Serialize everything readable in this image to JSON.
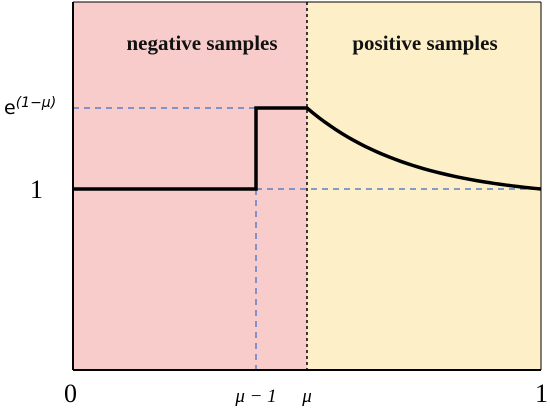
{
  "chart_data": {
    "type": "line",
    "title": "",
    "xlabel": "",
    "ylabel": "",
    "regions": [
      {
        "name": "negative-region",
        "label": "negative samples",
        "x_range": [
          "0",
          "μ"
        ],
        "color": "#f9cccc"
      },
      {
        "name": "positive-region",
        "label": "positive samples",
        "x_range": [
          "μ",
          "1"
        ],
        "color": "#fdf0c8"
      }
    ],
    "x_ticks": [
      "0",
      "μ − 1",
      "μ",
      "1"
    ],
    "y_ticks": [
      "1",
      "e(1−μ)"
    ],
    "y_tick_parts": {
      "base": "e",
      "exponent": "(1−μ)"
    },
    "series": [
      {
        "points_description": "y = 1 on [0, μ−1); y = e^(1−μ) on [μ−1, μ]; decreasing curve from e^(1−μ) at μ to 1 at x = 1",
        "color": "#000000"
      }
    ],
    "guide_line_color": "#5b7fc4",
    "grid": false
  }
}
